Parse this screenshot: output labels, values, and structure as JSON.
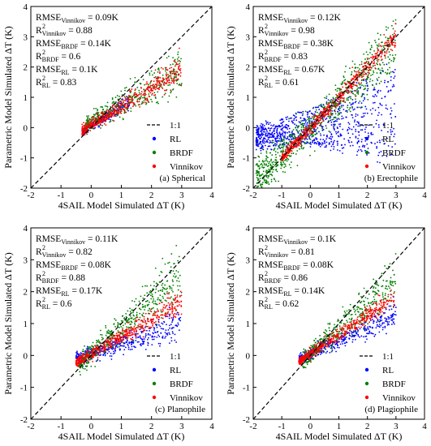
{
  "figure": {
    "legend_labels": {
      "ref": "1:1",
      "rl": "RL",
      "brdf": "BRDF",
      "vinnikov": "Vinnikov"
    }
  },
  "chart_data": [
    {
      "type": "scatter",
      "id": "a",
      "caption": "(a) Spherical",
      "xlabel": "4SAIL Model Simulated ΔT (K)",
      "ylabel": "Parametric Model Simulated ΔT (K)",
      "xlim": [
        -2,
        4
      ],
      "ylim": [
        -2,
        4
      ],
      "xticks": [
        -2,
        -1,
        0,
        1,
        2,
        3,
        4
      ],
      "yticks": [
        -2,
        -1,
        0,
        1,
        2,
        3,
        4
      ],
      "reference_line": "1:1",
      "legend_position": "lower-right",
      "stats": [
        {
          "prefix": "RMSE",
          "sub": "Vinnikov",
          "sup": "",
          "value": " = 0.09K"
        },
        {
          "prefix": "R",
          "sub": "Vinnikov",
          "sup": "2",
          "value": " = 0.88"
        },
        {
          "prefix": "RMSE",
          "sub": "BRDF",
          "sup": "",
          "value": " = 0.14K"
        },
        {
          "prefix": "R",
          "sub": "BRDF",
          "sup": "2",
          "value": " = 0.6"
        },
        {
          "prefix": "RMSE",
          "sub": "RL",
          "sup": "",
          "value": " = 0.1K"
        },
        {
          "prefix": "R",
          "sub": "RL",
          "sup": "2",
          "value": " = 0.83"
        }
      ],
      "series": [
        {
          "name": "RL",
          "color": "#0000ff",
          "shape": "main-band",
          "x_range": [
            -0.3,
            1.3
          ],
          "slope": 0.65,
          "intercept": 0.05,
          "spread": 0.08,
          "density": 260
        },
        {
          "name": "BRDF",
          "color": "#008000",
          "shape": "main-band",
          "x_range": [
            -0.2,
            3.0
          ],
          "slope": 0.55,
          "intercept": 0.2,
          "spread": 0.22,
          "density": 420
        },
        {
          "name": "Vinnikov",
          "color": "#ff0000",
          "shape": "main-band",
          "x_range": [
            -0.3,
            3.0
          ],
          "slope": 0.62,
          "intercept": 0.08,
          "spread": 0.14,
          "density": 520
        }
      ]
    },
    {
      "type": "scatter",
      "id": "b",
      "caption": "(b) Erectophile",
      "xlabel": "4SAIL Model Simulated ΔT (K)",
      "ylabel": "Parametric Model Simulated ΔT (K)",
      "xlim": [
        -2,
        4
      ],
      "ylim": [
        -2,
        4
      ],
      "xticks": [
        -2,
        -1,
        0,
        1,
        2,
        3,
        4
      ],
      "yticks": [
        -2,
        -1,
        0,
        1,
        2,
        3,
        4
      ],
      "reference_line": "1:1",
      "legend_position": "lower-right",
      "stats": [
        {
          "prefix": "RMSE",
          "sub": "Vinnikov",
          "sup": "",
          "value": " = 0.12K"
        },
        {
          "prefix": "R",
          "sub": "Vinnikov",
          "sup": "2",
          "value": " = 0.98"
        },
        {
          "prefix": "RMSE",
          "sub": "BRDF",
          "sup": "",
          "value": " = 0.38K"
        },
        {
          "prefix": "R",
          "sub": "BRDF",
          "sup": "2",
          "value": " = 0.83"
        },
        {
          "prefix": "RMSE",
          "sub": "RL",
          "sup": "",
          "value": " = 0.67K"
        },
        {
          "prefix": "R",
          "sub": "RL",
          "sup": "2",
          "value": " = 0.61"
        }
      ],
      "series": [
        {
          "name": "RL",
          "color": "#0000ff",
          "shape": "fan-wide",
          "x_range": [
            -1.9,
            3.0
          ],
          "slope": 0.0,
          "intercept": 0.0,
          "spread": 0.3,
          "density": 900
        },
        {
          "name": "BRDF",
          "color": "#008000",
          "shape": "fan-mid",
          "x_range": [
            -1.9,
            3.0
          ],
          "slope": 1.0,
          "intercept": 0.0,
          "spread": 0.6,
          "density": 800
        },
        {
          "name": "Vinnikov",
          "color": "#ff0000",
          "shape": "main-band",
          "x_range": [
            -1.0,
            3.0
          ],
          "slope": 1.0,
          "intercept": 0.0,
          "spread": 0.12,
          "density": 600
        }
      ]
    },
    {
      "type": "scatter",
      "id": "c",
      "caption": "(c) Planophile",
      "xlabel": "4SAIL Model Simulated ΔT (K)",
      "ylabel": "Parametric Model Simulated ΔT (K)",
      "xlim": [
        -2,
        4
      ],
      "ylim": [
        -2,
        4
      ],
      "xticks": [
        -2,
        -1,
        0,
        1,
        2,
        3,
        4
      ],
      "yticks": [
        -2,
        -1,
        0,
        1,
        2,
        3,
        4
      ],
      "reference_line": "1:1",
      "legend_position": "lower-right",
      "stats": [
        {
          "prefix": "RMSE",
          "sub": "Vinnikov",
          "sup": "",
          "value": " = 0.11K"
        },
        {
          "prefix": "R",
          "sub": "Vinnikov",
          "sup": "2",
          "value": " = 0.82"
        },
        {
          "prefix": "RMSE",
          "sub": "BRDF",
          "sup": "",
          "value": " = 0.08K"
        },
        {
          "prefix": "R",
          "sub": "BRDF",
          "sup": "2",
          "value": " = 0.88"
        },
        {
          "prefix": "RMSE",
          "sub": "RL",
          "sup": "",
          "value": " = 0.17K"
        },
        {
          "prefix": "R",
          "sub": "RL",
          "sup": "2",
          "value": " = 0.6"
        }
      ],
      "series": [
        {
          "name": "RL",
          "color": "#0000ff",
          "shape": "main-band",
          "x_range": [
            -0.5,
            3.0
          ],
          "slope": 0.3,
          "intercept": 0.05,
          "spread": 0.15,
          "density": 450
        },
        {
          "name": "BRDF",
          "color": "#008000",
          "shape": "main-band",
          "x_range": [
            -0.4,
            3.0
          ],
          "slope": 0.85,
          "intercept": 0.05,
          "spread": 0.25,
          "density": 480
        },
        {
          "name": "Vinnikov",
          "color": "#ff0000",
          "shape": "main-band",
          "x_range": [
            -0.5,
            3.0
          ],
          "slope": 0.55,
          "intercept": 0.05,
          "spread": 0.12,
          "density": 520
        }
      ]
    },
    {
      "type": "scatter",
      "id": "d",
      "caption": "(d) Plagiophile",
      "xlabel": "4SAIL Model Simulated ΔT (K)",
      "ylabel": "Parametric Model Simulated ΔT (K)",
      "xlim": [
        -2,
        4
      ],
      "ylim": [
        -2,
        4
      ],
      "xticks": [
        -2,
        -1,
        0,
        1,
        2,
        3,
        4
      ],
      "yticks": [
        -2,
        -1,
        0,
        1,
        2,
        3,
        4
      ],
      "reference_line": "1:1",
      "legend_position": "lower-right",
      "stats": [
        {
          "prefix": "RMSE",
          "sub": "Vinnikov",
          "sup": "",
          "value": " = 0.1K"
        },
        {
          "prefix": "R",
          "sub": "Vinnikov",
          "sup": "2",
          "value": " = 0.81"
        },
        {
          "prefix": "RMSE",
          "sub": "BRDF",
          "sup": "",
          "value": " = 0.08K"
        },
        {
          "prefix": "R",
          "sub": "BRDF",
          "sup": "2",
          "value": " = 0.86"
        },
        {
          "prefix": "RMSE",
          "sub": "RL",
          "sup": "",
          "value": " = 0.14K"
        },
        {
          "prefix": "R",
          "sub": "RL",
          "sup": "2",
          "value": " = 0.62"
        }
      ],
      "series": [
        {
          "name": "RL",
          "color": "#0000ff",
          "shape": "main-band",
          "x_range": [
            -0.4,
            3.0
          ],
          "slope": 0.4,
          "intercept": 0.05,
          "spread": 0.12,
          "density": 420
        },
        {
          "name": "BRDF",
          "color": "#008000",
          "shape": "main-band",
          "x_range": [
            -0.3,
            3.0
          ],
          "slope": 0.75,
          "intercept": 0.05,
          "spread": 0.22,
          "density": 460
        },
        {
          "name": "Vinnikov",
          "color": "#ff0000",
          "shape": "main-band",
          "x_range": [
            -0.4,
            3.0
          ],
          "slope": 0.6,
          "intercept": 0.05,
          "spread": 0.1,
          "density": 500
        }
      ]
    }
  ]
}
